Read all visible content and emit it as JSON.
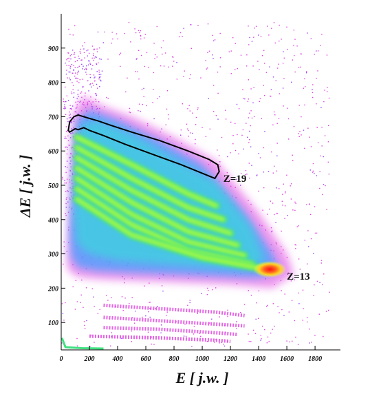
{
  "chart_data": {
    "type": "heatmap",
    "title": "",
    "xlabel": "E [ j.w. ]",
    "ylabel": "ΔE [ j.w. ]",
    "xlim": [
      0,
      1980
    ],
    "ylim": [
      20,
      1000
    ],
    "x_ticks": [
      0,
      200,
      400,
      600,
      800,
      1000,
      1200,
      1400,
      1600,
      1800
    ],
    "y_ticks": [
      100,
      200,
      300,
      400,
      500,
      600,
      700,
      800,
      900
    ],
    "colormap": [
      "#e040e0",
      "#9040ff",
      "#40a0ff",
      "#40d0e0",
      "#40e080",
      "#a0ff40",
      "#ffff20",
      "#ff8020",
      "#ff2020"
    ],
    "gate_polygon": {
      "x": [
        50,
        60,
        90,
        120,
        160,
        200,
        260,
        350,
        500,
        700,
        900,
        1050,
        1110,
        1120,
        1090,
        1000,
        850,
        650,
        450,
        300,
        200,
        160,
        120,
        100,
        80,
        60,
        50
      ],
      "y": [
        660,
        685,
        700,
        705,
        700,
        695,
        688,
        675,
        655,
        630,
        600,
        575,
        560,
        540,
        520,
        535,
        560,
        590,
        620,
        645,
        660,
        668,
        662,
        665,
        660,
        655,
        660
      ]
    },
    "annotations": [
      {
        "text": "Z=19",
        "x": 1150,
        "y": 520
      },
      {
        "text": "Z=13",
        "x": 1600,
        "y": 235
      }
    ],
    "hot_spot": {
      "x": 1480,
      "y": 255
    },
    "band_ridges": [
      {
        "x": [
          110,
          500,
          900,
          1100
        ],
        "y": [
          640,
          560,
          475,
          440
        ]
      },
      {
        "x": [
          110,
          500,
          900,
          1150
        ],
        "y": [
          610,
          520,
          435,
          400
        ]
      },
      {
        "x": [
          110,
          500,
          900,
          1200
        ],
        "y": [
          580,
          485,
          400,
          360
        ]
      },
      {
        "x": [
          110,
          500,
          900,
          1250
        ],
        "y": [
          550,
          450,
          365,
          325
        ]
      },
      {
        "x": [
          110,
          500,
          900,
          1300
        ],
        "y": [
          520,
          415,
          335,
          295
        ]
      },
      {
        "x": [
          110,
          500,
          900,
          1350
        ],
        "y": [
          490,
          385,
          310,
          270
        ]
      },
      {
        "x": [
          110,
          500,
          1000,
          1450
        ],
        "y": [
          460,
          355,
          290,
          255
        ]
      }
    ],
    "low_bands": [
      {
        "x": [
          300,
          700,
          1100,
          1300
        ],
        "y": [
          150,
          140,
          130,
          120
        ]
      },
      {
        "x": [
          300,
          700,
          1100,
          1300
        ],
        "y": [
          115,
          105,
          95,
          90
        ]
      },
      {
        "x": [
          300,
          700,
          1100,
          1250
        ],
        "y": [
          85,
          80,
          70,
          65
        ]
      },
      {
        "x": [
          200,
          700,
          1100,
          1200
        ],
        "y": [
          60,
          55,
          48,
          45
        ]
      }
    ]
  }
}
